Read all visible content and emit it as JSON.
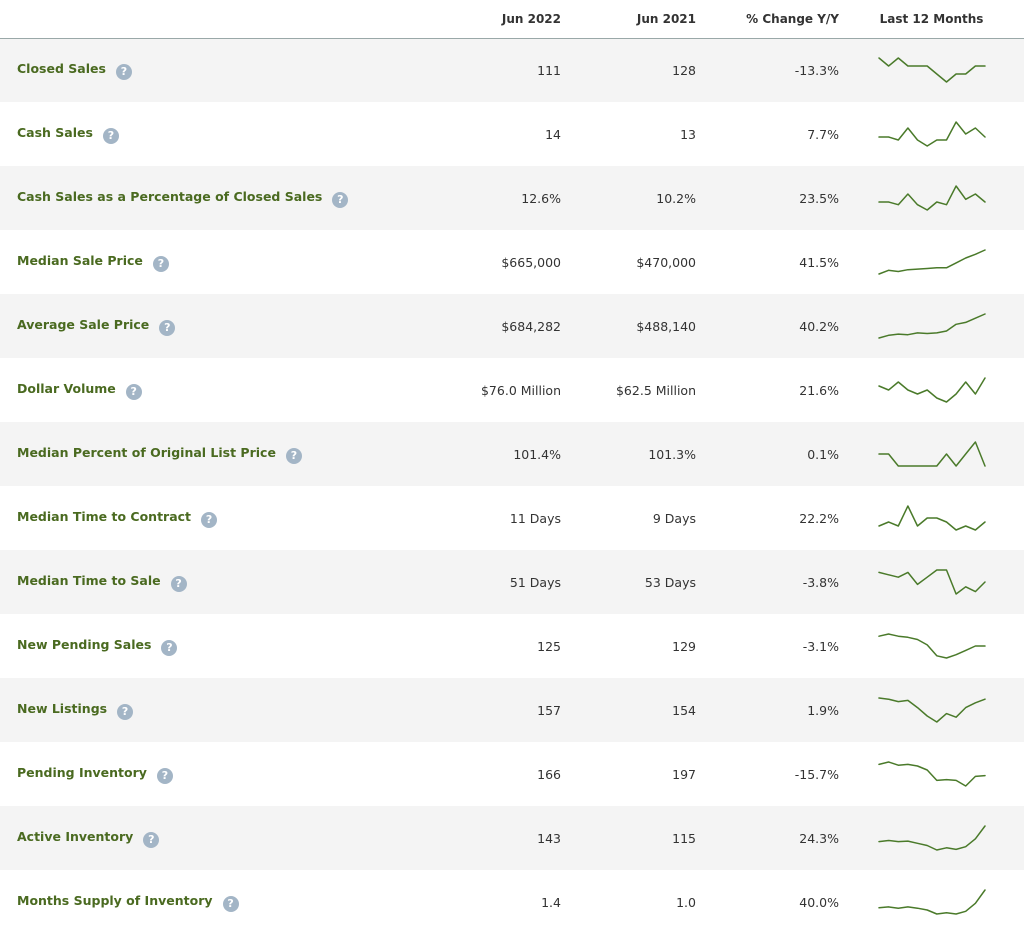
{
  "header": {
    "col_metric": "",
    "col_jun2022": "Jun 2022",
    "col_jun2021": "Jun 2021",
    "col_change": "% Change Y/Y",
    "col_trend": "Last 12 Months"
  },
  "spark_color": "#4a7a2a",
  "help_icon": {
    "name": "question-mark-icon",
    "glyph": "?",
    "color": "#a3b5c6"
  },
  "rows": [
    {
      "label": "Closed Sales",
      "jun2022": "111",
      "jun2021": "128",
      "change": "-13.3%",
      "trend": [
        96,
        95,
        96,
        95,
        95,
        95,
        94,
        93,
        94,
        94,
        95,
        95
      ]
    },
    {
      "label": "Cash Sales",
      "jun2022": "14",
      "jun2021": "13",
      "change": "7.7%",
      "trend": [
        10,
        10,
        9,
        13,
        9,
        7,
        9,
        9,
        15,
        11,
        13,
        10
      ]
    },
    {
      "label": "Cash Sales as a Percentage of Closed Sales",
      "jun2022": "12.6%",
      "jun2021": "10.2%",
      "change": "23.5%",
      "trend": [
        11,
        11,
        10,
        14,
        10,
        8,
        11,
        10,
        17,
        12,
        14,
        11
      ]
    },
    {
      "label": "Median Sale Price",
      "jun2022": "$665,000",
      "jun2021": "$470,000",
      "change": "41.5%",
      "trend": [
        470,
        500,
        490,
        505,
        510,
        515,
        520,
        520,
        560,
        600,
        630,
        665
      ]
    },
    {
      "label": "Average Sale Price",
      "jun2022": "$684,282",
      "jun2021": "$488,140",
      "change": "40.2%",
      "trend": [
        488,
        510,
        520,
        515,
        530,
        525,
        530,
        545,
        600,
        615,
        650,
        684
      ]
    },
    {
      "label": "Dollar Volume",
      "jun2022": "$76.0 Million",
      "jun2021": "$62.5 Million",
      "change": "21.6%",
      "trend": [
        76,
        75,
        77,
        75,
        74,
        75,
        73,
        72,
        74,
        77,
        74,
        78
      ]
    },
    {
      "label": "Median Percent of Original List Price",
      "jun2022": "101.4%",
      "jun2021": "101.3%",
      "change": "0.1%",
      "trend": [
        101.3,
        101.3,
        101.2,
        101.2,
        101.2,
        101.2,
        101.2,
        101.3,
        101.2,
        101.3,
        101.4,
        101.2
      ]
    },
    {
      "label": "Median Time to Contract",
      "jun2022": "11 Days",
      "jun2021": "9 Days",
      "change": "22.2%",
      "trend": [
        9,
        10,
        9,
        14,
        9,
        11,
        11,
        10,
        8,
        9,
        8,
        10
      ]
    },
    {
      "label": "Median Time to Sale",
      "jun2022": "51 Days",
      "jun2021": "53 Days",
      "change": "-3.8%",
      "trend": [
        57,
        56,
        55,
        57,
        52,
        55,
        58,
        58,
        48,
        51,
        49,
        53
      ]
    },
    {
      "label": "New Pending Sales",
      "jun2022": "125",
      "jun2021": "129",
      "change": "-3.1%",
      "trend": [
        138,
        140,
        138,
        137,
        135,
        130,
        120,
        118,
        121,
        125,
        129,
        129
      ]
    },
    {
      "label": "New Listings",
      "jun2022": "157",
      "jun2021": "154",
      "change": "1.9%",
      "trend": [
        158,
        157,
        155,
        156,
        150,
        143,
        138,
        145,
        142,
        150,
        154,
        157
      ]
    },
    {
      "label": "Pending Inventory",
      "jun2022": "166",
      "jun2021": "197",
      "change": "-15.7%",
      "trend": [
        197,
        200,
        196,
        197,
        195,
        190,
        177,
        178,
        177,
        170,
        182,
        183
      ]
    },
    {
      "label": "Active Inventory",
      "jun2022": "143",
      "jun2021": "115",
      "change": "24.3%",
      "trend": [
        115,
        117,
        115,
        116,
        112,
        108,
        100,
        104,
        101,
        106,
        120,
        143
      ]
    },
    {
      "label": "Months Supply of Inventory",
      "jun2022": "1.4",
      "jun2021": "1.0",
      "change": "40.0%",
      "trend": [
        1.0,
        1.02,
        0.99,
        1.02,
        0.99,
        0.95,
        0.86,
        0.89,
        0.86,
        0.92,
        1.1,
        1.4
      ]
    }
  ]
}
